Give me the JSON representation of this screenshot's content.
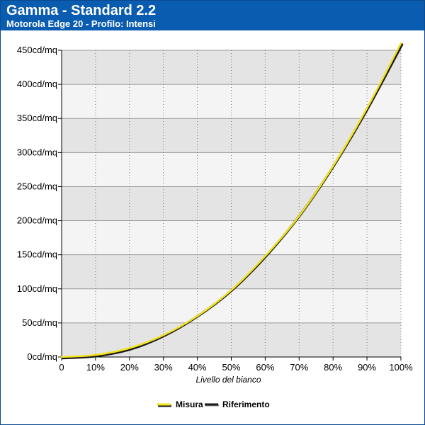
{
  "header": {
    "title": "Gamma - Standard 2.2",
    "subtitle": "Motorola Edge 20 - Profilo: Intensi"
  },
  "colors": {
    "header_bg": "#0a5cb0",
    "band_dark": "#e4e4e4",
    "band_light": "#f4f4f4",
    "measured": "#f2e21a",
    "reference": "#1a1a1a"
  },
  "chart_data": {
    "type": "line",
    "title": "Gamma - Standard 2.2",
    "subtitle": "Motorola Edge 20 - Profilo: Intensi",
    "xlabel": "Livello del bianco",
    "ylabel": "",
    "xlim": [
      0,
      100
    ],
    "ylim": [
      0,
      450
    ],
    "x_tick_labels": [
      "0",
      "10%",
      "20%",
      "30%",
      "40%",
      "50%",
      "60%",
      "70%",
      "80%",
      "90%",
      "100%"
    ],
    "y_tick_labels": [
      "0cd/mq",
      "50cd/mq",
      "100cd/mq",
      "150cd/mq",
      "200cd/mq",
      "250cd/mq",
      "300cd/mq",
      "350cd/mq",
      "400cd/mq",
      "450cd/mq"
    ],
    "x": [
      0,
      10,
      20,
      30,
      40,
      50,
      60,
      70,
      80,
      90,
      100
    ],
    "series": [
      {
        "name": "Misura",
        "color": "#f2e21a",
        "values": [
          0,
          3,
          13,
          32,
          60,
          98,
          148,
          207,
          280,
          365,
          460
        ]
      },
      {
        "name": "Riferimento",
        "color": "#1a1a1a",
        "values": [
          0,
          3,
          13,
          33,
          62,
          100,
          150,
          210,
          283,
          367,
          460
        ]
      }
    ],
    "grid": true,
    "legend": "bottom-center"
  }
}
